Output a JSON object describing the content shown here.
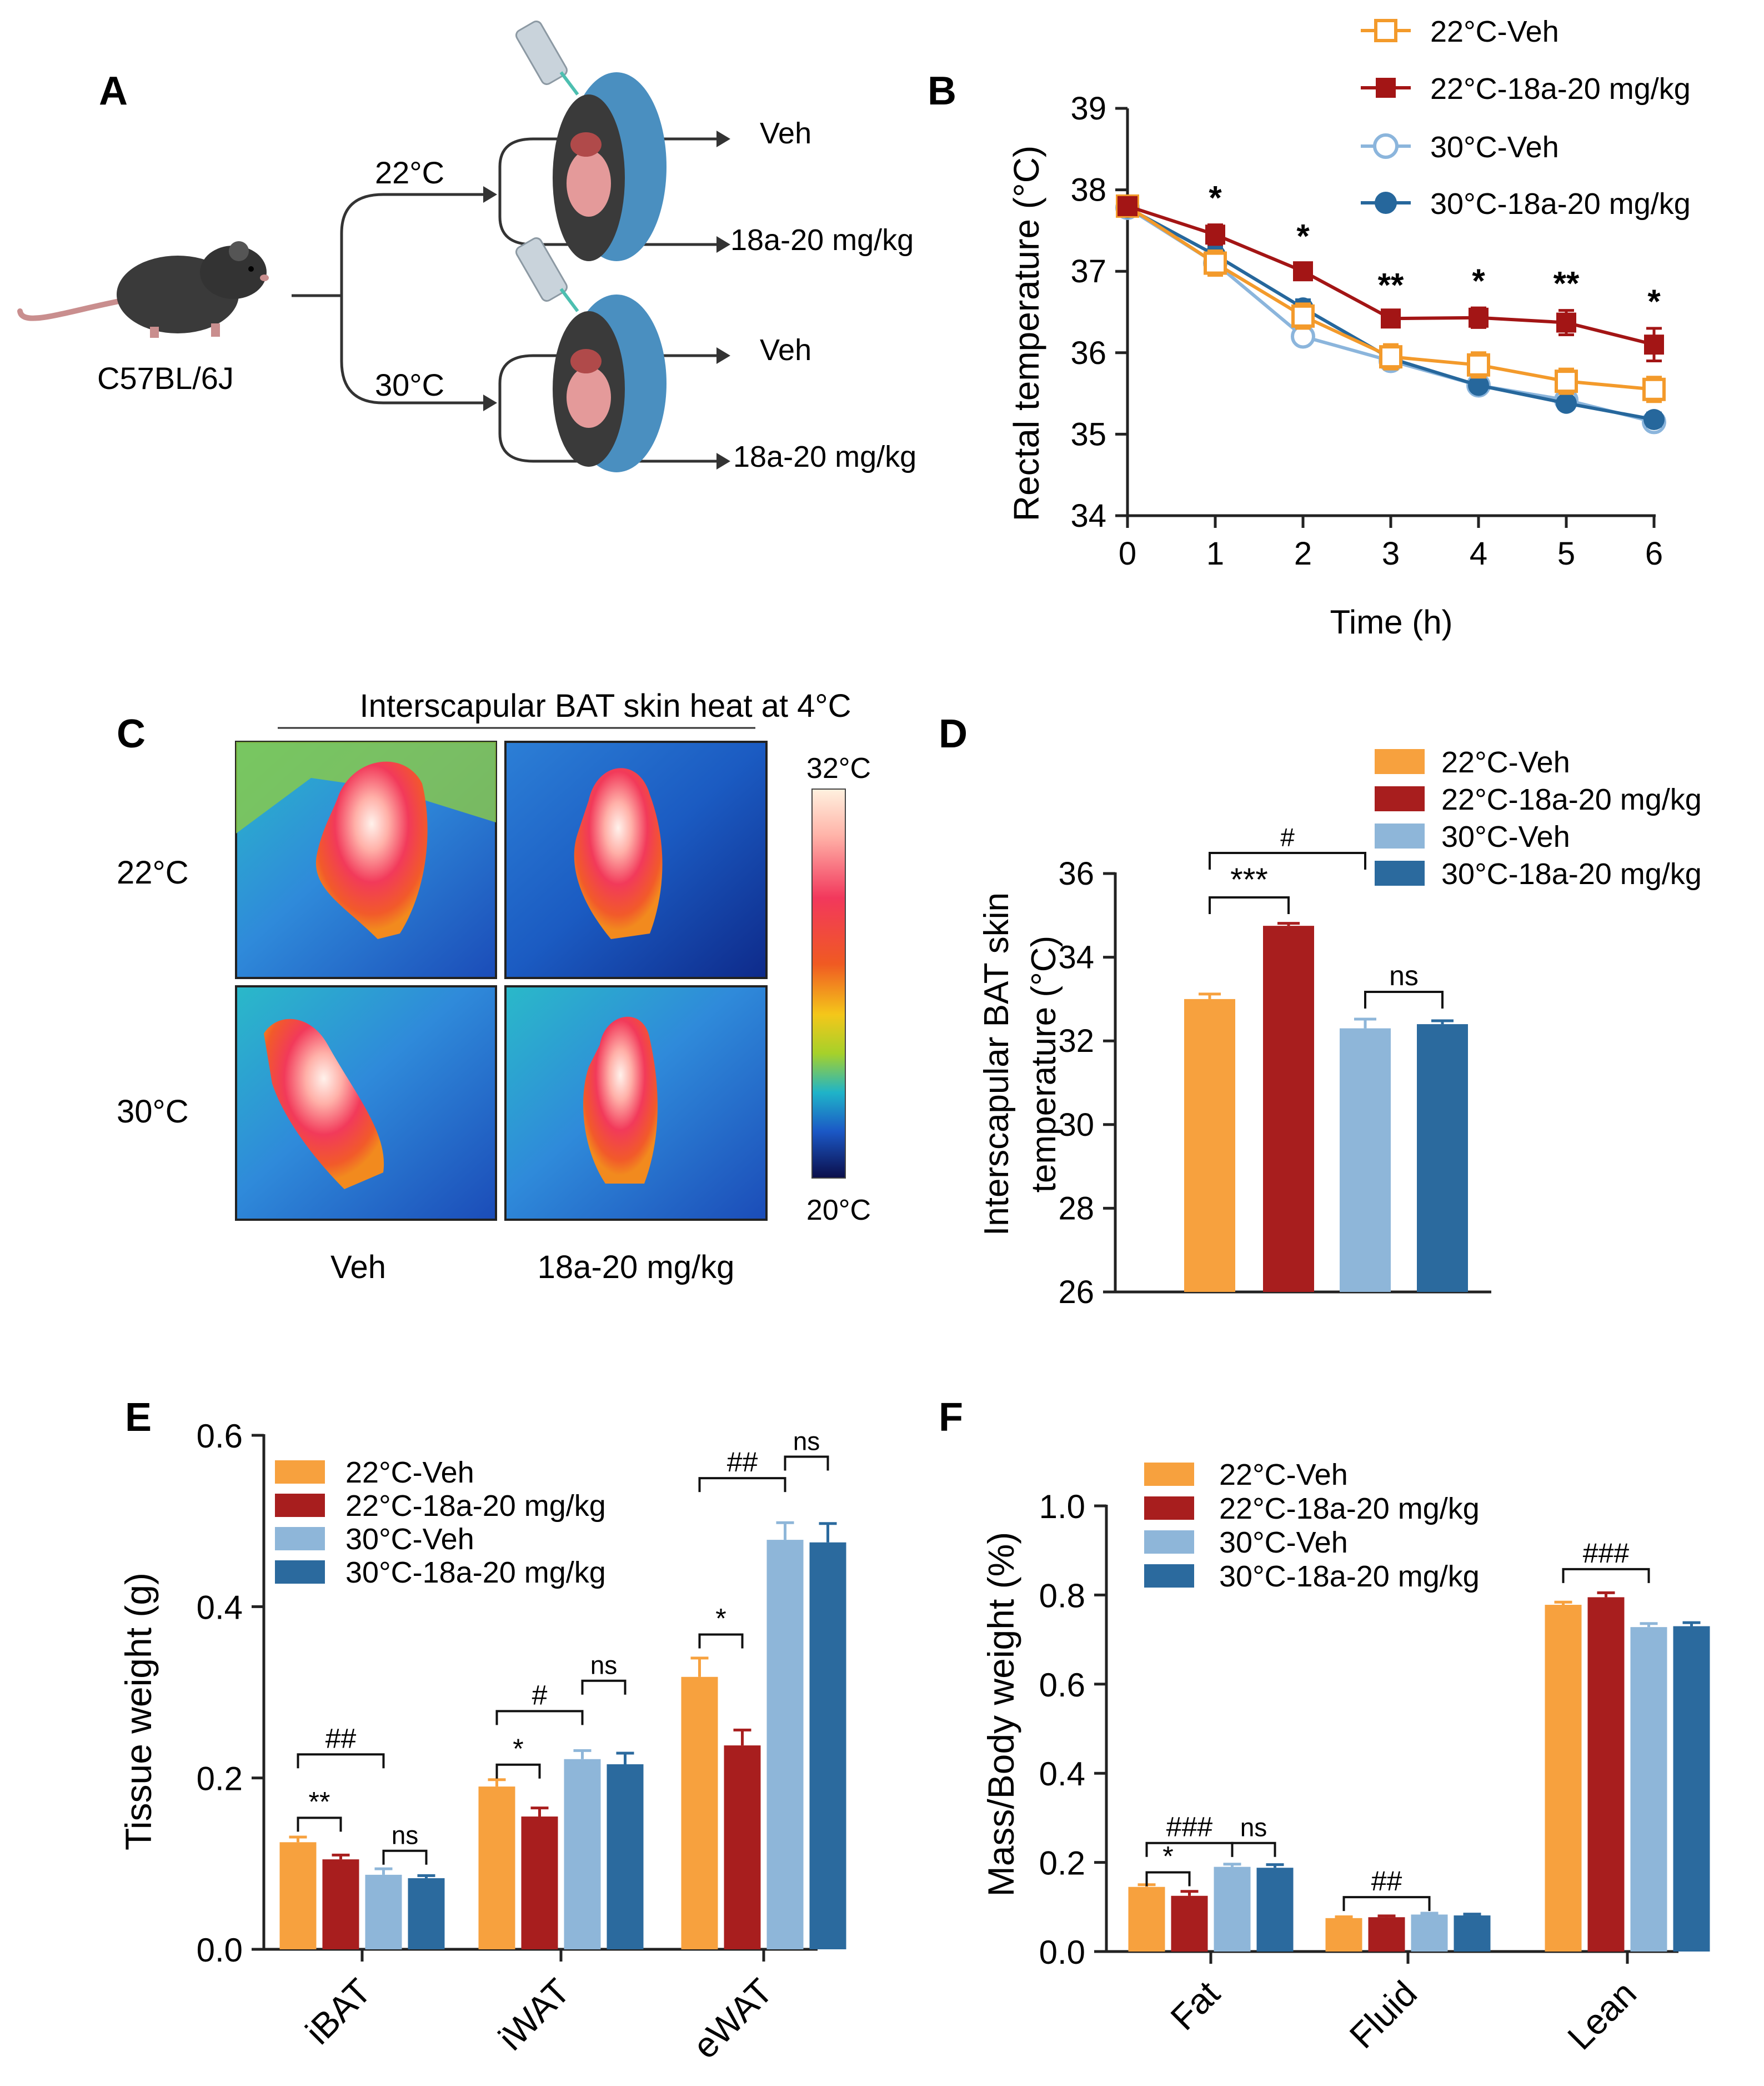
{
  "colors": {
    "veh22": "#F7A13E",
    "drug22": "#A81E1E",
    "veh30": "#8EB6D9",
    "drug30": "#2B6A9E",
    "axis": "#222222",
    "line_veh22": "#F39A2B",
    "line_drug22": "#A31515",
    "line_veh30": "#8BB5DC",
    "line_drug30": "#26679C"
  },
  "panelA": {
    "letter": "A",
    "strain": "C57BL/6J",
    "temp_top": "22°C",
    "temp_bottom": "30°C",
    "arm_top_1": "Veh",
    "arm_top_2": "18a-20 mg/kg",
    "arm_bottom_1": "Veh",
    "arm_bottom_2": "18a-20 mg/kg",
    "icons": [
      "mouse-icon",
      "syringe-icon",
      "mouse-anatomy-icon"
    ]
  },
  "panelC": {
    "letter": "C",
    "title": "Interscapular BAT skin  heat at 4°C",
    "row_top": "22°C",
    "row_bottom": "30°C",
    "col_left": "Veh",
    "col_right": "18a-20 mg/kg",
    "scale_max": "32°C",
    "scale_min": "20°C"
  },
  "legend": [
    "22°C-Veh",
    "22°C-18a-20 mg/kg",
    "30°C-Veh",
    "30°C-18a-20 mg/kg"
  ],
  "chart_data": [
    {
      "panel": "B",
      "type": "line",
      "letter": "B",
      "xlabel": "Time (h)",
      "ylabel": "Rectal temperature (°C)",
      "x": [
        0,
        1,
        2,
        3,
        4,
        5,
        6
      ],
      "xticks": [
        "0",
        "1",
        "2",
        "3",
        "4",
        "5",
        "6"
      ],
      "yticks": [
        "34",
        "35",
        "36",
        "37",
        "38",
        "39"
      ],
      "ylim": [
        34,
        39
      ],
      "series": [
        {
          "name": "22°C-Veh",
          "marker": "open-square",
          "values": [
            37.8,
            37.1,
            36.45,
            35.95,
            35.85,
            35.65,
            35.55
          ],
          "err": [
            0.1,
            0.15,
            0.15,
            0.15,
            0.15,
            0.15,
            0.15
          ]
        },
        {
          "name": "22°C-18a-20 mg/kg",
          "marker": "filled-square",
          "values": [
            37.8,
            37.45,
            37.0,
            36.42,
            36.43,
            36.37,
            36.1
          ],
          "err": [
            0.08,
            0.12,
            0.1,
            0.08,
            0.12,
            0.15,
            0.2
          ]
        },
        {
          "name": "30°C-Veh",
          "marker": "open-circle",
          "values": [
            37.78,
            37.1,
            36.2,
            35.9,
            35.6,
            35.42,
            35.15
          ],
          "err": [
            0.05,
            0.1,
            0.1,
            0.1,
            0.05,
            0.05,
            0.1
          ]
        },
        {
          "name": "30°C-18a-20 mg/kg",
          "marker": "filled-circle",
          "values": [
            37.78,
            37.2,
            36.55,
            35.93,
            35.6,
            35.38,
            35.18
          ],
          "err": [
            0.05,
            0.1,
            0.1,
            0.08,
            0.05,
            0.05,
            0.08
          ]
        }
      ],
      "annotations": [
        {
          "x": 1,
          "text": "*"
        },
        {
          "x": 2,
          "text": "*"
        },
        {
          "x": 3,
          "text": "**"
        },
        {
          "x": 4,
          "text": "*"
        },
        {
          "x": 5,
          "text": "**"
        },
        {
          "x": 6,
          "text": "*"
        }
      ]
    },
    {
      "panel": "D",
      "type": "bar",
      "letter": "D",
      "ylabel_line1": "Interscapular BAT skin",
      "ylabel_line2": "temperature (°C)",
      "ylim": [
        26,
        36
      ],
      "yticks": [
        "26",
        "28",
        "30",
        "32",
        "34",
        "36"
      ],
      "categories": [
        "22°C-Veh",
        "22°C-18a-20 mg/kg",
        "30°C-Veh",
        "30°C-18a-20 mg/kg"
      ],
      "values": [
        33.0,
        34.75,
        32.3,
        32.4
      ],
      "err": [
        0.12,
        0.06,
        0.22,
        0.08
      ],
      "brackets": [
        {
          "from": 0,
          "to": 1,
          "text": "***"
        },
        {
          "from": 0,
          "to": 2,
          "text": "#"
        },
        {
          "from": 2,
          "to": 3,
          "text": "ns"
        }
      ]
    },
    {
      "panel": "E",
      "type": "bar",
      "letter": "E",
      "ylabel": "Tissue weight (g)",
      "ylim": [
        0,
        0.6
      ],
      "yticks": [
        "0.0",
        "0.2",
        "0.4",
        "0.6"
      ],
      "categories": [
        "iBAT",
        "iWAT",
        "eWAT"
      ],
      "series": [
        {
          "name": "22°C-Veh",
          "values": [
            0.125,
            0.19,
            0.318
          ],
          "err": [
            0.006,
            0.008,
            0.022
          ]
        },
        {
          "name": "22°C-18a-20 mg/kg",
          "values": [
            0.105,
            0.155,
            0.238
          ],
          "err": [
            0.005,
            0.01,
            0.018
          ]
        },
        {
          "name": "30°C-Veh",
          "values": [
            0.087,
            0.222,
            0.478
          ],
          "err": [
            0.007,
            0.01,
            0.02
          ]
        },
        {
          "name": "30°C-18a-20 mg/kg",
          "values": [
            0.083,
            0.216,
            0.475
          ],
          "err": [
            0.003,
            0.013,
            0.022
          ]
        }
      ],
      "brackets": [
        {
          "group": 0,
          "from": 0,
          "to": 1,
          "text": "**"
        },
        {
          "group": 0,
          "from": 0,
          "to": 2,
          "text": "##"
        },
        {
          "group": 0,
          "from": 2,
          "to": 3,
          "text": "ns"
        },
        {
          "group": 1,
          "from": 0,
          "to": 1,
          "text": "*"
        },
        {
          "group": 1,
          "from": 0,
          "to": 2,
          "text": "#"
        },
        {
          "group": 1,
          "from": 2,
          "to": 3,
          "text": "ns"
        },
        {
          "group": 2,
          "from": 0,
          "to": 1,
          "text": "*"
        },
        {
          "group": 2,
          "from": 0,
          "to": 2,
          "text": "##"
        },
        {
          "group": 2,
          "from": 2,
          "to": 3,
          "text": "ns"
        }
      ]
    },
    {
      "panel": "F",
      "type": "bar",
      "letter": "F",
      "ylabel": "Mass/Body weight (%)",
      "ylim": [
        0,
        1.0
      ],
      "yticks": [
        "0.0",
        "0.2",
        "0.4",
        "0.6",
        "0.8",
        "1.0"
      ],
      "categories": [
        "Fat",
        "Fluid",
        "Lean"
      ],
      "series": [
        {
          "name": "22°C-Veh",
          "values": [
            0.145,
            0.075,
            0.778
          ],
          "err": [
            0.005,
            0.003,
            0.006
          ]
        },
        {
          "name": "22°C-18a-20 mg/kg",
          "values": [
            0.125,
            0.077,
            0.795
          ],
          "err": [
            0.01,
            0.003,
            0.01
          ]
        },
        {
          "name": "30°C-Veh",
          "values": [
            0.19,
            0.083,
            0.728
          ],
          "err": [
            0.006,
            0.003,
            0.008
          ]
        },
        {
          "name": "30°C-18a-20 mg/kg",
          "values": [
            0.188,
            0.081,
            0.73
          ],
          "err": [
            0.007,
            0.003,
            0.008
          ]
        }
      ],
      "brackets": [
        {
          "group": 0,
          "from": 0,
          "to": 1,
          "text": "*"
        },
        {
          "group": 0,
          "from": 0,
          "to": 2,
          "text": "###"
        },
        {
          "group": 0,
          "from": 2,
          "to": 3,
          "text": "ns"
        },
        {
          "group": 1,
          "from": 0,
          "to": 2,
          "text": "##"
        },
        {
          "group": 2,
          "from": 0,
          "to": 2,
          "text": "###"
        }
      ]
    }
  ]
}
